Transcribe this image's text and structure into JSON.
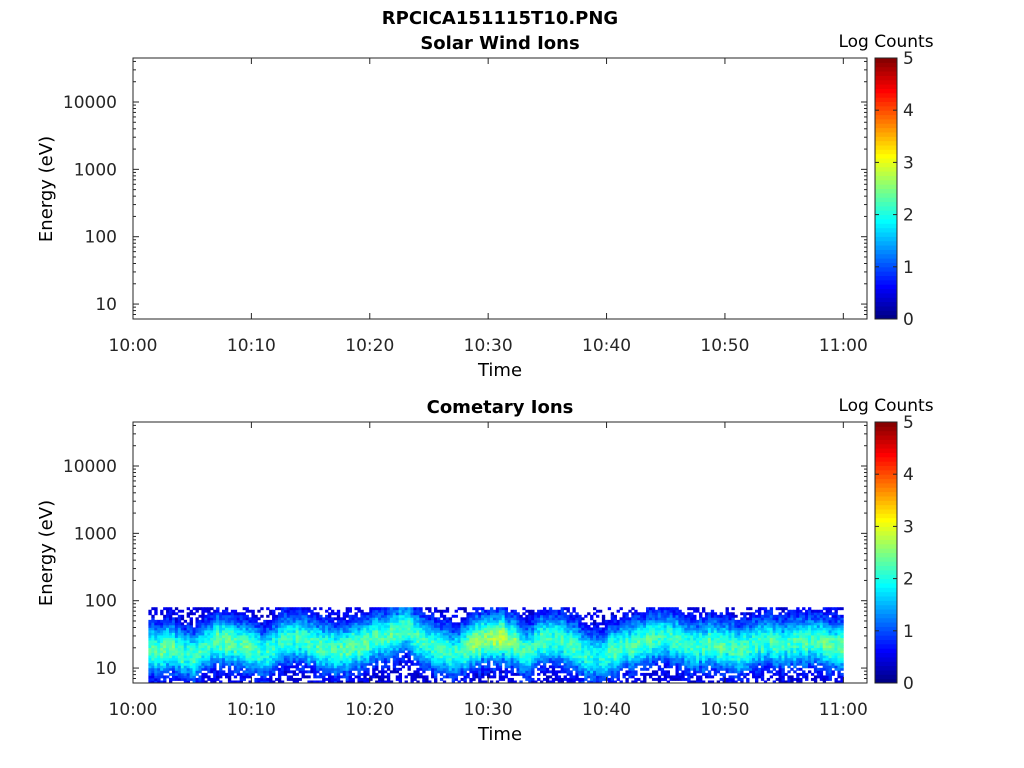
{
  "figure_title": "RPCICA151115T10.PNG",
  "colors": {
    "axis": "#262626",
    "background": "#ffffff",
    "colormap": "jet"
  },
  "chart_data": [
    {
      "type": "heatmap",
      "title": "Solar Wind Ions",
      "xlabel": "Time",
      "ylabel": "Energy (eV)",
      "xticks": [
        "10:00",
        "10:10",
        "10:20",
        "10:30",
        "10:40",
        "10:50",
        "11:00"
      ],
      "xlim": [
        "10:00",
        "11:02"
      ],
      "yscale": "log",
      "yticks": [
        10,
        100,
        1000,
        10000
      ],
      "yticklabels": [
        "10",
        "100",
        "1000",
        "10000"
      ],
      "ylim": [
        6,
        45000
      ],
      "colorbar": {
        "label": "Log Counts",
        "range": [
          0,
          5
        ],
        "ticks": [
          "0",
          "1",
          "2",
          "3",
          "4",
          "5"
        ]
      },
      "data": []
    },
    {
      "type": "heatmap",
      "title": "Cometary Ions",
      "xlabel": "Time",
      "ylabel": "Energy (eV)",
      "xticks": [
        "10:00",
        "10:10",
        "10:20",
        "10:30",
        "10:40",
        "10:50",
        "11:00"
      ],
      "xlim": [
        "10:00",
        "11:02"
      ],
      "yscale": "log",
      "yticks": [
        10,
        100,
        1000,
        10000
      ],
      "yticklabels": [
        "10",
        "100",
        "1000",
        "10000"
      ],
      "ylim": [
        6,
        45000
      ],
      "colorbar": {
        "label": "Log Counts",
        "range": [
          0,
          5
        ],
        "ticks": [
          "0",
          "1",
          "2",
          "3",
          "4",
          "5"
        ]
      },
      "data": {
        "time_range": [
          "10:01",
          "11:00"
        ],
        "energy_max_eV": 80,
        "energy_min_eV": 6,
        "peak_energy_eV": [
          [
            "10:01",
            18
          ],
          [
            "10:03",
            20
          ],
          [
            "10:05",
            15
          ],
          [
            "10:07",
            26
          ],
          [
            "10:09",
            22
          ],
          [
            "10:11",
            16
          ],
          [
            "10:13",
            28
          ],
          [
            "10:15",
            24
          ],
          [
            "10:17",
            18
          ],
          [
            "10:19",
            22
          ],
          [
            "10:21",
            30
          ],
          [
            "10:23",
            38
          ],
          [
            "10:25",
            22
          ],
          [
            "10:27",
            16
          ],
          [
            "10:29",
            26
          ],
          [
            "10:31",
            30
          ],
          [
            "10:33",
            18
          ],
          [
            "10:35",
            30
          ],
          [
            "10:37",
            22
          ],
          [
            "10:39",
            14
          ],
          [
            "10:41",
            20
          ],
          [
            "10:43",
            26
          ],
          [
            "10:45",
            30
          ],
          [
            "10:47",
            20
          ],
          [
            "10:49",
            24
          ],
          [
            "10:51",
            18
          ],
          [
            "10:53",
            25
          ],
          [
            "10:55",
            22
          ],
          [
            "10:57",
            26
          ],
          [
            "10:59",
            22
          ]
        ],
        "peak_log_counts": [
          [
            "10:01",
            1.9
          ],
          [
            "10:03",
            2.0
          ],
          [
            "10:05",
            1.8
          ],
          [
            "10:07",
            1.9
          ],
          [
            "10:09",
            2.0
          ],
          [
            "10:11",
            1.7
          ],
          [
            "10:13",
            1.8
          ],
          [
            "10:15",
            1.8
          ],
          [
            "10:17",
            1.9
          ],
          [
            "10:19",
            2.0
          ],
          [
            "10:21",
            1.9
          ],
          [
            "10:23",
            1.8
          ],
          [
            "10:25",
            1.8
          ],
          [
            "10:27",
            1.7
          ],
          [
            "10:29",
            2.2
          ],
          [
            "10:31",
            2.4
          ],
          [
            "10:33",
            1.9
          ],
          [
            "10:35",
            1.8
          ],
          [
            "10:37",
            1.8
          ],
          [
            "10:39",
            1.6
          ],
          [
            "10:41",
            1.9
          ],
          [
            "10:43",
            1.9
          ],
          [
            "10:45",
            1.8
          ],
          [
            "10:47",
            1.7
          ],
          [
            "10:49",
            1.9
          ],
          [
            "10:51",
            1.9
          ],
          [
            "10:53",
            1.8
          ],
          [
            "10:55",
            1.8
          ],
          [
            "10:57",
            1.9
          ],
          [
            "10:59",
            2.0
          ]
        ]
      }
    }
  ]
}
